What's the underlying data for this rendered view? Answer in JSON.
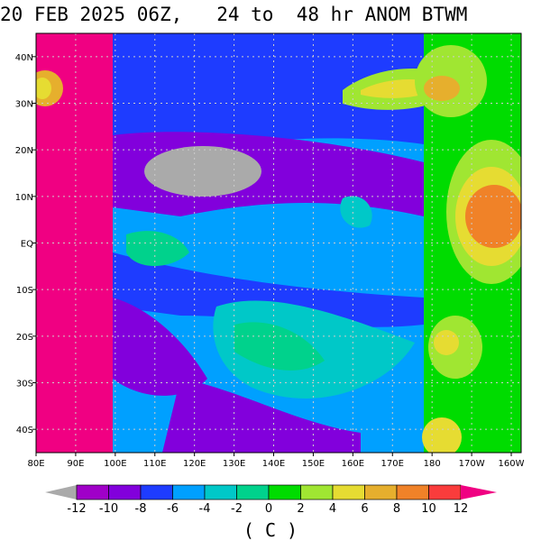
{
  "title": "20 FEB 2025 06Z,   24 to  48 hr ANOM BTWM",
  "map": {
    "lat_labels": [
      "40N",
      "30N",
      "20N",
      "10N",
      "EQ",
      "10S",
      "20S",
      "30S",
      "40S"
    ],
    "lat_values": [
      40,
      30,
      20,
      10,
      0,
      -10,
      -20,
      -30,
      -40
    ],
    "lon_labels": [
      "80E",
      "90E",
      "100E",
      "110E",
      "120E",
      "130E",
      "140E",
      "150E",
      "160E",
      "170E",
      "180",
      "170W",
      "160W"
    ],
    "lon_values": [
      80,
      90,
      100,
      110,
      120,
      130,
      140,
      150,
      160,
      170,
      180,
      190,
      200
    ],
    "lat_range": [
      -45,
      45
    ],
    "lon_range": [
      80,
      202.5
    ]
  },
  "colorbar": {
    "ticks": [
      "-12",
      "-10",
      "-8",
      "-6",
      "-4",
      "-2",
      "0",
      "2",
      "4",
      "6",
      "8",
      "10",
      "12"
    ],
    "colors": [
      "#aaaaaa",
      "#a000c8",
      "#8200dc",
      "#1e3cff",
      "#00a0ff",
      "#00c8c8",
      "#00d28c",
      "#00dc00",
      "#a0e632",
      "#e6dc32",
      "#e6af2d",
      "#f08228",
      "#fa3c3c",
      "#f00082"
    ],
    "unit": "( C )"
  }
}
